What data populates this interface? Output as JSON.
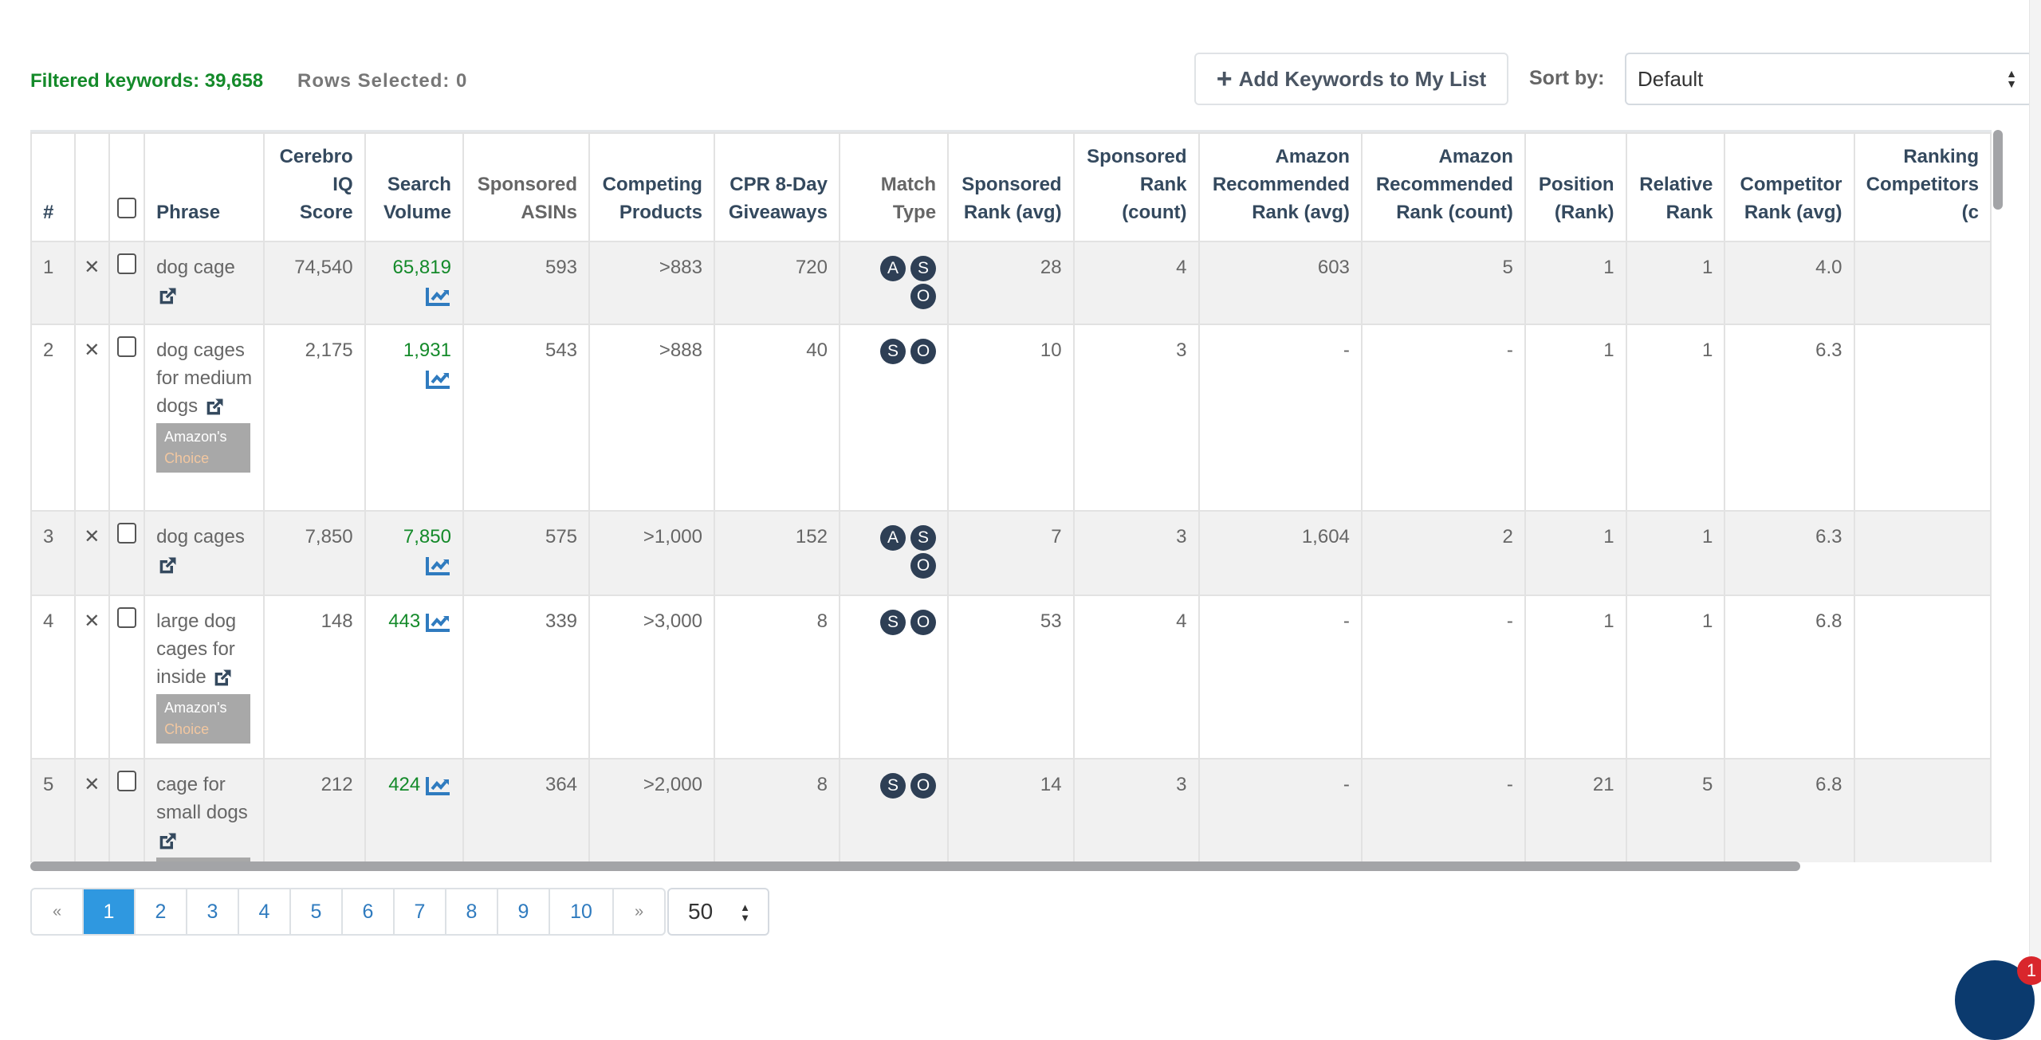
{
  "summary": {
    "filtered": "Filtered keywords: 39,658",
    "rows_selected": "Rows Selected: 0"
  },
  "toolbar": {
    "add_label": "Add Keywords to My List",
    "add_icon": "plus-icon",
    "sort_label": "Sort by:",
    "sort_value": "Default"
  },
  "columns": [
    {
      "key": "num",
      "label": "#"
    },
    {
      "key": "remove",
      "label": ""
    },
    {
      "key": "select",
      "label": ""
    },
    {
      "key": "phrase",
      "label": "Phrase"
    },
    {
      "key": "cerebro",
      "label": "Cerebro IQ Score"
    },
    {
      "key": "search_volume",
      "label": "Search Volume"
    },
    {
      "key": "sponsored_asins",
      "label": "Sponsored ASINs"
    },
    {
      "key": "competing",
      "label": "Competing Products"
    },
    {
      "key": "cpr",
      "label": "CPR 8-Day Giveaways"
    },
    {
      "key": "match_type",
      "label": "Match Type"
    },
    {
      "key": "spon_rank_avg",
      "label": "Sponsored Rank (avg)"
    },
    {
      "key": "spon_rank_count",
      "label": "Sponsored Rank (count)"
    },
    {
      "key": "amz_rec_avg",
      "label": "Amazon Recommended Rank (avg)"
    },
    {
      "key": "amz_rec_count",
      "label": "Amazon Recommended Rank (count)"
    },
    {
      "key": "position",
      "label": "Position (Rank)"
    },
    {
      "key": "relative",
      "label": "Relative Rank"
    },
    {
      "key": "comp_rank_avg",
      "label": "Competitor Rank (avg)"
    },
    {
      "key": "ranking_comp",
      "label": "Ranking Competitors (c"
    }
  ],
  "badge": {
    "line1": "Amazon's",
    "line2": "Choice"
  },
  "rows": [
    {
      "num": "1",
      "phrase": "dog cage",
      "amazons_choice": false,
      "cerebro": "74,540",
      "search_volume": "65,819",
      "sponsored_asins": "593",
      "competing": ">883",
      "cpr": "720",
      "match_type": [
        "A",
        "S",
        "O"
      ],
      "spon_rank_avg": "28",
      "spon_rank_count": "4",
      "amz_rec_avg": "603",
      "amz_rec_count": "5",
      "position": "1",
      "relative": "1",
      "comp_rank_avg": "4.0"
    },
    {
      "num": "2",
      "phrase": "dog cages for medium dogs",
      "amazons_choice": true,
      "cerebro": "2,175",
      "search_volume": "1,931",
      "sponsored_asins": "543",
      "competing": ">888",
      "cpr": "40",
      "match_type": [
        "S",
        "O"
      ],
      "spon_rank_avg": "10",
      "spon_rank_count": "3",
      "amz_rec_avg": "-",
      "amz_rec_count": "-",
      "position": "1",
      "relative": "1",
      "comp_rank_avg": "6.3"
    },
    {
      "num": "3",
      "phrase": "dog cages",
      "amazons_choice": false,
      "cerebro": "7,850",
      "search_volume": "7,850",
      "sponsored_asins": "575",
      "competing": ">1,000",
      "cpr": "152",
      "match_type": [
        "A",
        "S",
        "O"
      ],
      "spon_rank_avg": "7",
      "spon_rank_count": "3",
      "amz_rec_avg": "1,604",
      "amz_rec_count": "2",
      "position": "1",
      "relative": "1",
      "comp_rank_avg": "6.3"
    },
    {
      "num": "4",
      "phrase": "large dog cages for inside",
      "amazons_choice": true,
      "cerebro": "148",
      "search_volume": "443",
      "sponsored_asins": "339",
      "competing": ">3,000",
      "cpr": "8",
      "match_type": [
        "S",
        "O"
      ],
      "spon_rank_avg": "53",
      "spon_rank_count": "4",
      "amz_rec_avg": "-",
      "amz_rec_count": "-",
      "position": "1",
      "relative": "1",
      "comp_rank_avg": "6.8"
    },
    {
      "num": "5",
      "phrase": "cage for small dogs",
      "amazons_choice": true,
      "cerebro": "212",
      "search_volume": "424",
      "sponsored_asins": "364",
      "competing": ">2,000",
      "cpr": "8",
      "match_type": [
        "S",
        "O"
      ],
      "spon_rank_avg": "14",
      "spon_rank_count": "3",
      "amz_rec_avg": "-",
      "amz_rec_count": "-",
      "position": "21",
      "relative": "5",
      "comp_rank_avg": "6.8"
    }
  ],
  "pagination": {
    "prev": "«",
    "pages": [
      "1",
      "2",
      "3",
      "4",
      "5",
      "6",
      "7",
      "8",
      "9",
      "10"
    ],
    "next": "»",
    "current": "1",
    "per_page": "50"
  },
  "chat": {
    "unread": "1"
  },
  "colors": {
    "green": "#148a2a",
    "blue": "#2f7bbf",
    "active_page": "#2f98e0",
    "navy": "#2e3f55"
  }
}
